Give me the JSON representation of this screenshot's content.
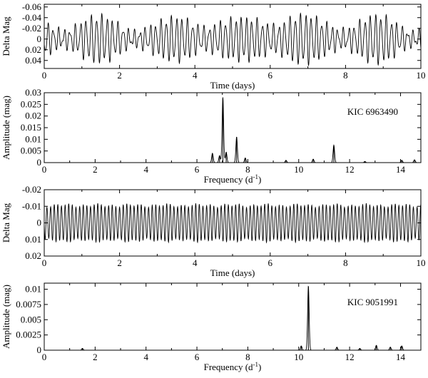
{
  "chart_data": [
    {
      "type": "line",
      "xlabel": "Time (days)",
      "ylabel": "Delta Mag",
      "xlim": [
        0,
        10
      ],
      "ylim": [
        -0.065,
        0.055
      ],
      "y_inverted": true,
      "xticks": [
        "0",
        "2",
        "4",
        "6",
        "8",
        "10"
      ],
      "yticks": [
        "-0.06",
        "-0.04",
        "-0.02",
        "0",
        "0.02",
        "0.04"
      ],
      "signal": {
        "components": [
          {
            "freq": 7.02,
            "amp": 0.028
          },
          {
            "freq": 7.56,
            "amp": 0.011
          },
          {
            "freq": 11.38,
            "amp": 0.0075
          },
          {
            "freq": 6.61,
            "amp": 0.004
          },
          {
            "freq": 6.89,
            "amp": 0.003
          }
        ]
      }
    },
    {
      "type": "line",
      "title": "KIC 6963490",
      "xlabel": "Frequency (d",
      "xlabel_sup": "-1",
      "xlabel_end": ")",
      "ylabel": "Amplitude (mag)",
      "xlim": [
        0,
        14.8
      ],
      "ylim": [
        0,
        0.03
      ],
      "xticks": [
        "0",
        "2",
        "4",
        "6",
        "8",
        "10",
        "12",
        "14"
      ],
      "yticks": [
        "0",
        "0.005",
        "0.01",
        "0.015",
        "0.02",
        "0.025",
        "0.03"
      ],
      "peaks": [
        {
          "x": 6.61,
          "y": 0.004
        },
        {
          "x": 6.89,
          "y": 0.003
        },
        {
          "x": 7.02,
          "y": 0.028
        },
        {
          "x": 7.15,
          "y": 0.0045
        },
        {
          "x": 7.56,
          "y": 0.011
        },
        {
          "x": 7.9,
          "y": 0.002
        },
        {
          "x": 9.5,
          "y": 0.001
        },
        {
          "x": 10.57,
          "y": 0.0015
        },
        {
          "x": 11.38,
          "y": 0.0075
        },
        {
          "x": 12.6,
          "y": 0.0005
        },
        {
          "x": 14.05,
          "y": 0.001
        },
        {
          "x": 14.55,
          "y": 0.0012
        }
      ]
    },
    {
      "type": "line",
      "xlabel": "Time (days)",
      "ylabel": "Delta Mag",
      "xlim": [
        0,
        10
      ],
      "ylim": [
        -0.02,
        0.02
      ],
      "y_inverted": true,
      "xticks": [
        "0",
        "2",
        "4",
        "6",
        "8",
        "10"
      ],
      "yticks": [
        "-0.02",
        "-0.01",
        "0",
        "0.01",
        "0.02"
      ],
      "signal": {
        "components": [
          {
            "freq": 10.38,
            "amp": 0.0105
          },
          {
            "freq": 13.05,
            "amp": 0.0008
          },
          {
            "freq": 11.5,
            "amp": 0.0005
          }
        ]
      }
    },
    {
      "type": "line",
      "title": "KIC 9051991",
      "xlabel": "Frequency (d",
      "xlabel_sup": "-1",
      "xlabel_end": ")",
      "ylabel": "Amplitude (mag)",
      "xlim": [
        0,
        14.8
      ],
      "ylim": [
        0,
        0.011
      ],
      "xticks": [
        "0",
        "2",
        "4",
        "6",
        "8",
        "10",
        "12",
        "14"
      ],
      "yticks": [
        "0",
        "0.0025",
        "0.005",
        "0.0075",
        "0.01"
      ],
      "peaks": [
        {
          "x": 1.5,
          "y": 0.0003
        },
        {
          "x": 10.1,
          "y": 0.0007
        },
        {
          "x": 10.38,
          "y": 0.0105
        },
        {
          "x": 11.5,
          "y": 0.0005
        },
        {
          "x": 12.4,
          "y": 0.0003
        },
        {
          "x": 13.05,
          "y": 0.0008
        },
        {
          "x": 13.6,
          "y": 0.0005
        },
        {
          "x": 14.05,
          "y": 0.0007
        }
      ]
    }
  ]
}
